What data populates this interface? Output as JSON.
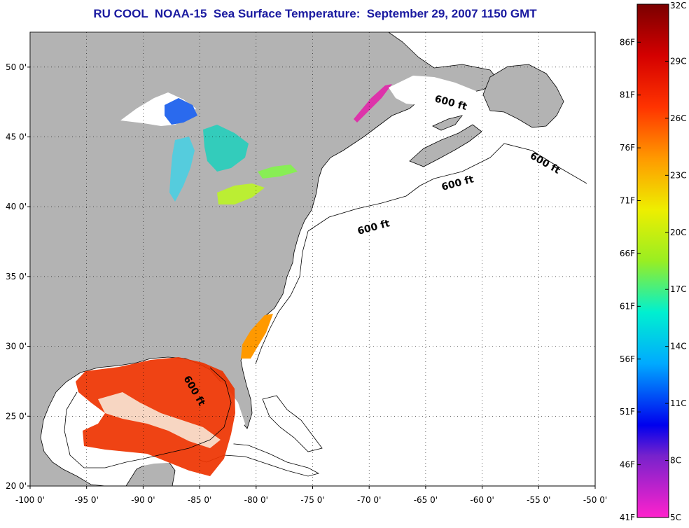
{
  "title": "RU COOL  NOAA-15  Sea Surface Temperature:  September 29, 2007 1150 GMT",
  "map": {
    "lon_ticks": [
      "-100 0'",
      "-95 0'",
      "-90 0'",
      "-85 0'",
      "-80 0'",
      "-75 0'",
      "-70 0'",
      "-65 0'",
      "-60 0'",
      "-55 0'",
      "-50 0'"
    ],
    "lat_ticks": [
      "50 0'",
      "45 0'",
      "40 0'",
      "35 0'",
      "30 0'",
      "25 0'",
      "20 0'"
    ],
    "lon_range": [
      -100,
      -50
    ],
    "lat_range": [
      20,
      52.5
    ],
    "land_color": "#b3b3b3",
    "ocean_color": "#ffffff",
    "isobath_label": "600 ft"
  },
  "colorbar": {
    "celsius_ticks": [
      "32C",
      "29C",
      "26C",
      "23C",
      "20C",
      "17C",
      "14C",
      "11C",
      "8C",
      "5C"
    ],
    "fahrenheit_ticks": [
      "86F",
      "81F",
      "76F",
      "71F",
      "66F",
      "61F",
      "56F",
      "51F",
      "46F",
      "41F"
    ],
    "range_c": [
      5,
      32
    ]
  }
}
